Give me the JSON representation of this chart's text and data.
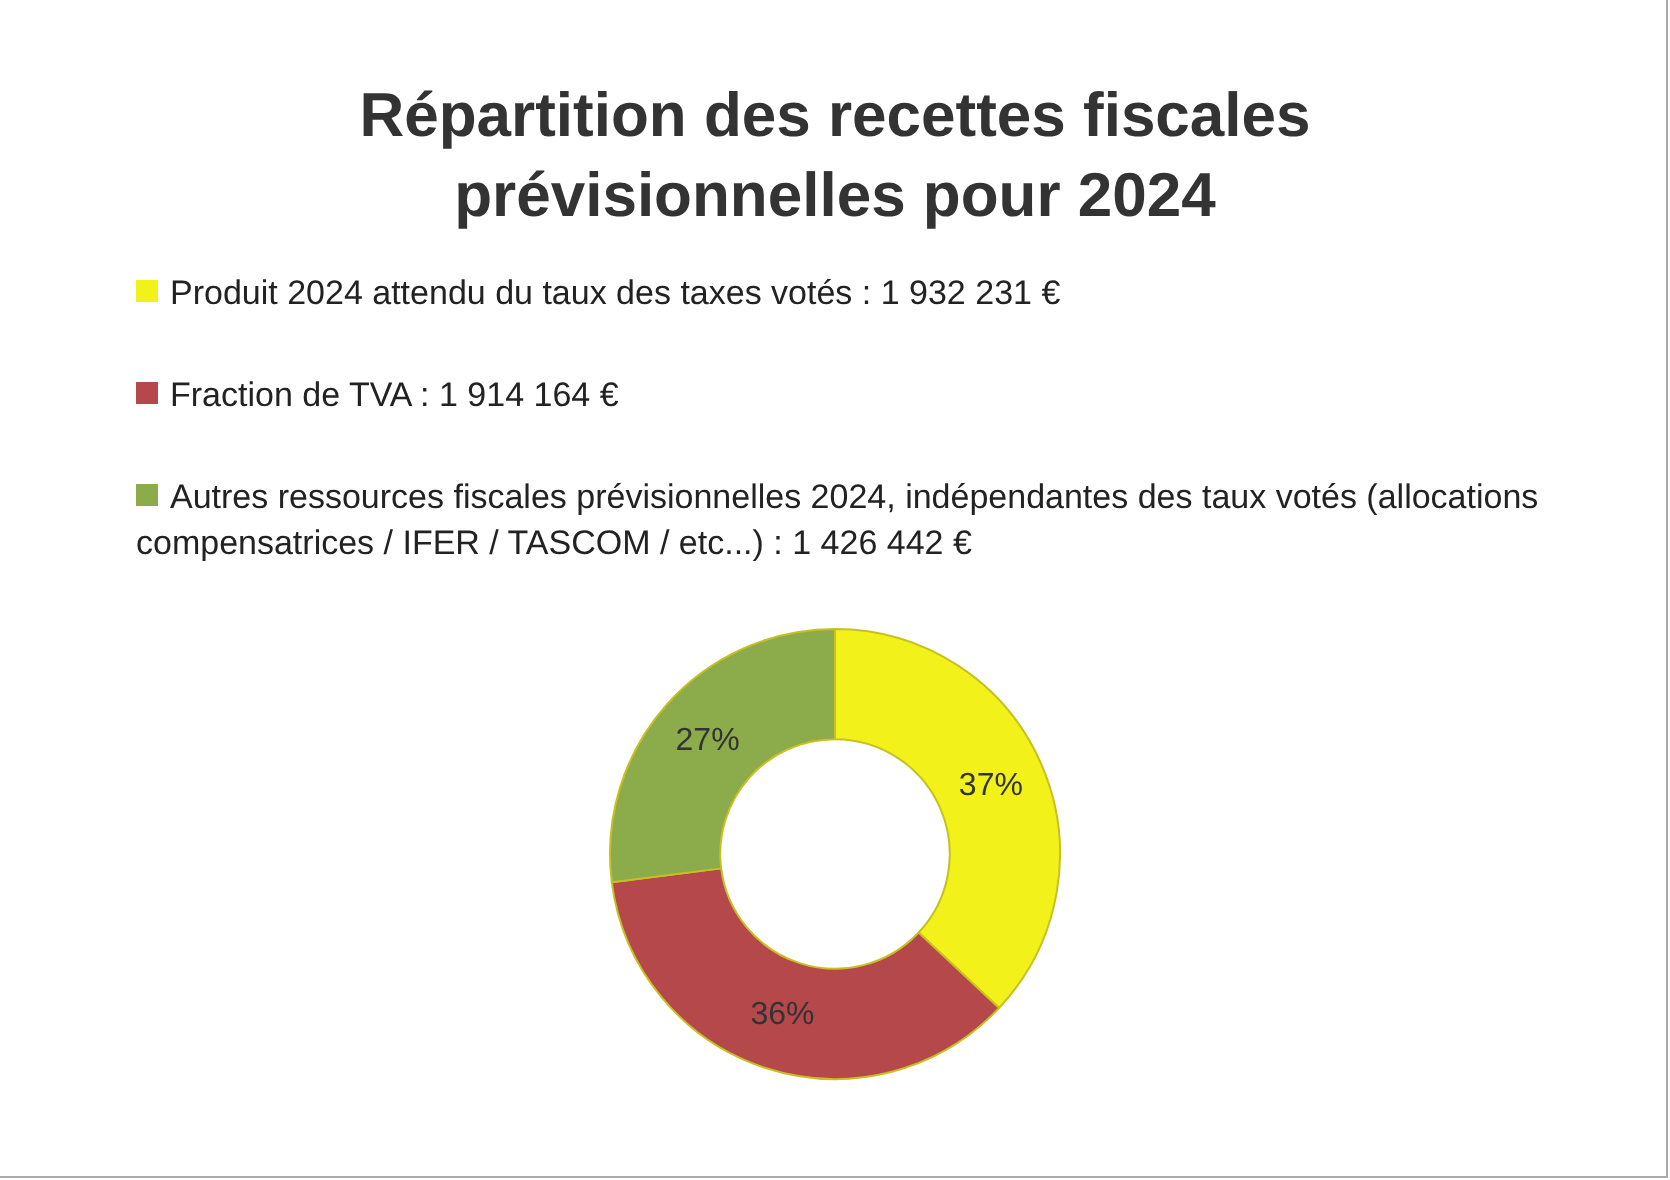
{
  "chart_data": {
    "type": "donut",
    "title": "Répartition des recettes fiscales prévisionnelles pour 2024",
    "categories": [
      "Produit 2024 attendu du taux des taxes votés : 1 932 231 €",
      "Fraction de TVA : 1 914 164 €",
      "Autres ressources fiscales prévisionnelles 2024, indépendantes des taux votés (allocations compensatrices / IFER / TASCOM / etc...) : 1 426 442 €"
    ],
    "values": [
      37,
      36,
      27
    ],
    "colors": [
      "#f2f21a",
      "#b5484a",
      "#8cab4a"
    ],
    "value_labels": [
      "37%",
      "36%",
      "27%"
    ],
    "legend": "top"
  }
}
